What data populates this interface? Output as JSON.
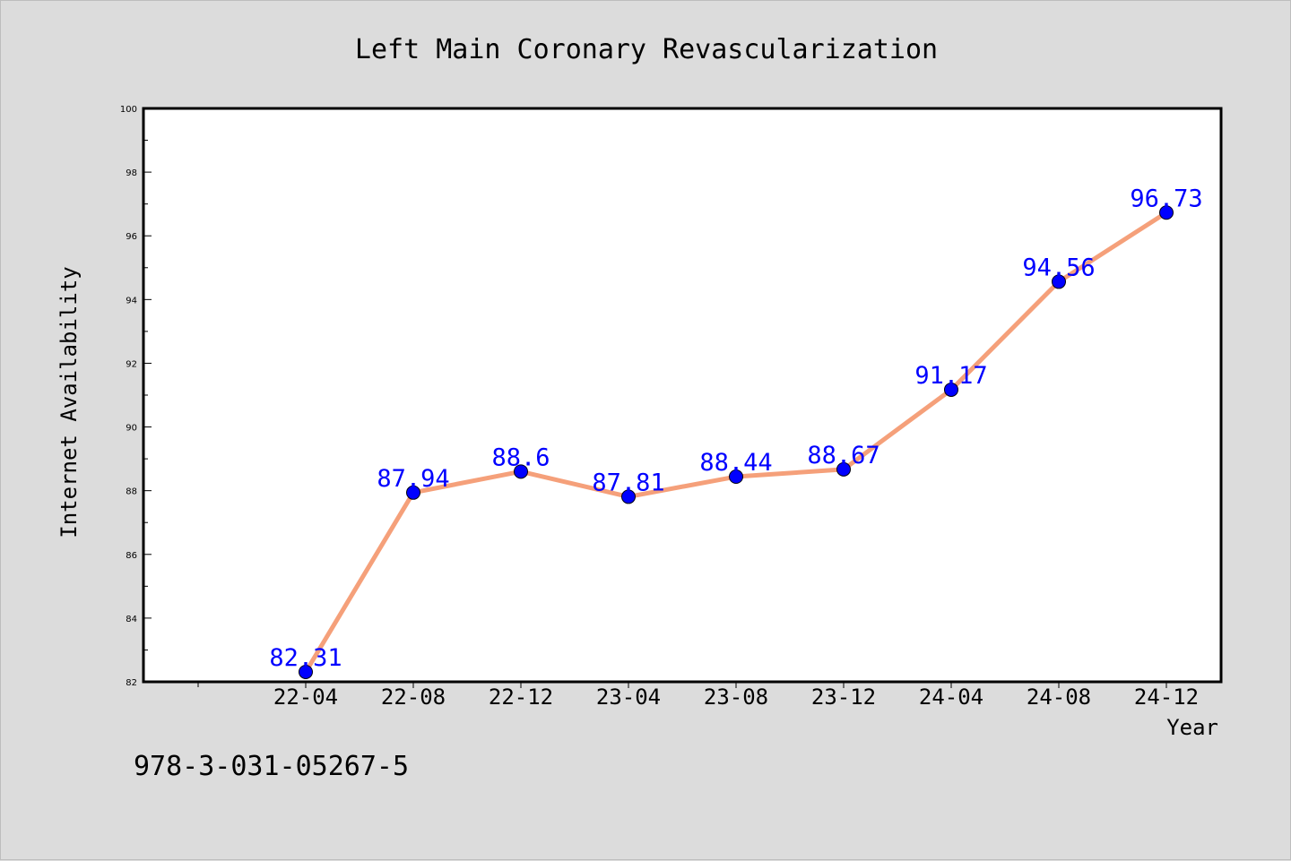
{
  "chart_data": {
    "type": "line",
    "title": "Left Main Coronary Revascularization",
    "xlabel": "Year",
    "ylabel": "Internet Availability",
    "categories": [
      "22-04",
      "22-08",
      "22-12",
      "23-04",
      "23-08",
      "23-12",
      "24-04",
      "24-08",
      "24-12"
    ],
    "values": [
      82.31,
      87.94,
      88.6,
      87.81,
      88.44,
      88.67,
      91.17,
      94.56,
      96.73
    ],
    "value_labels": [
      "82.31",
      "87.94",
      "88.6",
      "87.81",
      "88.44",
      "88.67",
      "91.17",
      "94.56",
      "96.73"
    ],
    "ylim": [
      82,
      100
    ],
    "yticks": [
      82,
      84,
      86,
      88,
      90,
      92,
      94,
      96,
      98,
      100
    ],
    "grid": false,
    "legend": "none",
    "colors": {
      "line": "#f5a07a",
      "marker": "#0000ff",
      "data_label": "#0000ff",
      "plot_background": "#ffffff",
      "page_background": "#dcdcdc"
    }
  },
  "footer": {
    "code": "978-3-031-05267-5"
  }
}
